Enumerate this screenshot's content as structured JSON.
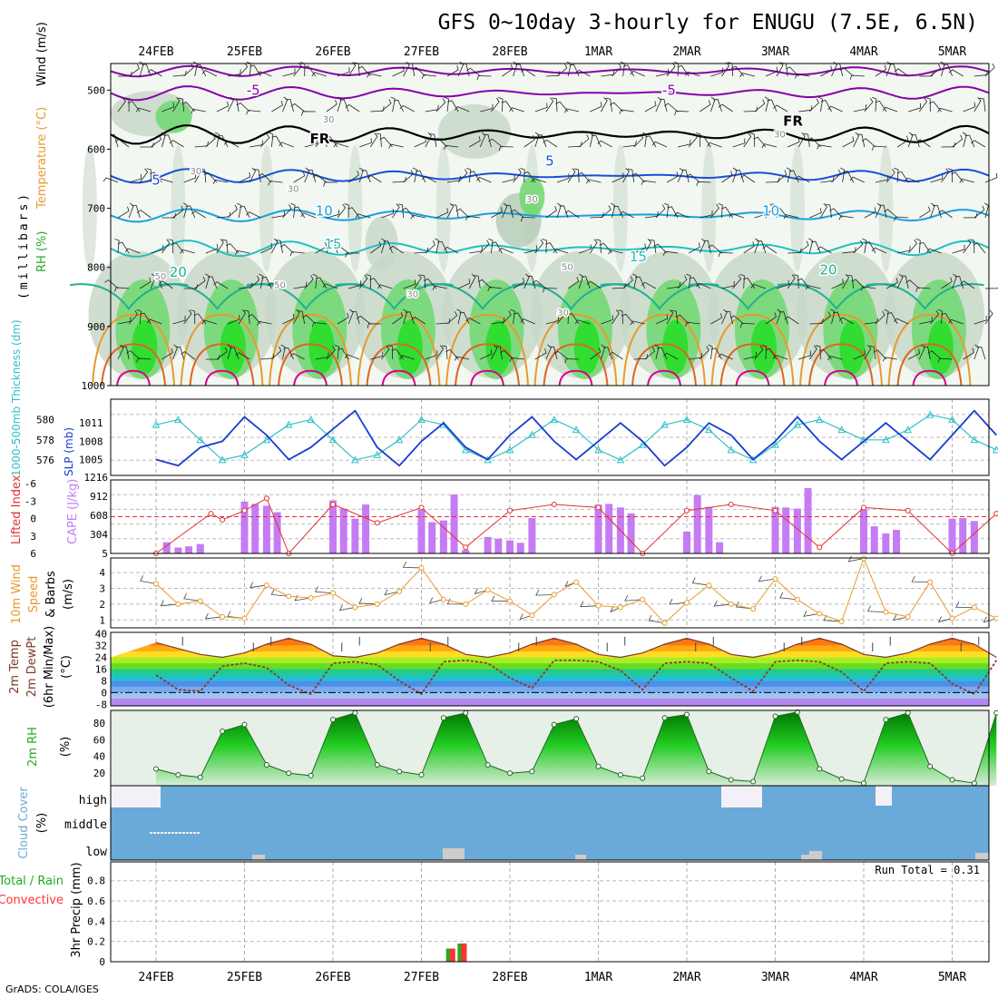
{
  "title": "GFS 0~10day 3-hourly for ENUGU (7.5E, 6.5N)",
  "footer": "GrADS: COLA/IGES",
  "dates": [
    "24FEB",
    "25FEB",
    "26FEB",
    "27FEB",
    "28FEB",
    "1MAR",
    "2MAR",
    "3MAR",
    "4MAR",
    "5MAR"
  ],
  "colors": {
    "accent_purple": "#8800aa",
    "freezing": "#000000",
    "temp_blue": "#1a4fd6",
    "slp": "#1a3cd0",
    "thickness": "#30c0c8",
    "cape_bar": "#c57bf4",
    "lifted_index": "#e03030",
    "wind_speed": "#e89a2c",
    "rh_green": "#22aa22",
    "cloud": "#6aaad8",
    "rain": "#ff3333",
    "total": "#22aa22"
  },
  "panels": {
    "upper_air": {
      "ylabels": [
        "RH (%)",
        "Temperature (°C)",
        "Wind (m/s)"
      ],
      "axis_title": "(millibars)",
      "levels": [
        "500",
        "600",
        "700",
        "800",
        "900",
        "1000"
      ],
      "contour_labels": [
        {
          "text": "-5",
          "level": 508,
          "day": 1.1
        },
        {
          "text": "-5",
          "level": 508,
          "day": 5.8
        },
        {
          "text": "FR",
          "level": 590,
          "day": 1.85
        },
        {
          "text": "FR",
          "level": 560,
          "day": 7.2
        },
        {
          "text": "5",
          "level": 628,
          "day": 4.45
        },
        {
          "text": "5",
          "level": 660,
          "day": 0.0
        },
        {
          "text": "10",
          "level": 712,
          "day": 1.9
        },
        {
          "text": "10",
          "level": 712,
          "day": 6.95
        },
        {
          "text": "15",
          "level": 768,
          "day": 2.0
        },
        {
          "text": "15",
          "level": 790,
          "day": 5.45
        },
        {
          "text": "20",
          "level": 816,
          "day": 0.25
        },
        {
          "text": "20",
          "level": 812,
          "day": 7.6
        },
        {
          "text": "30",
          "level": 555,
          "day": 1.95
        },
        {
          "text": "30",
          "level": 642,
          "day": 0.45
        },
        {
          "text": "30",
          "level": 672,
          "day": 1.55
        },
        {
          "text": "30",
          "level": 690,
          "day": 4.25
        },
        {
          "text": "30",
          "level": 580,
          "day": 7.05
        },
        {
          "text": "30",
          "level": 850,
          "day": 2.9
        },
        {
          "text": "30",
          "level": 882,
          "day": 4.6
        },
        {
          "text": "50",
          "level": 835,
          "day": 1.4
        },
        {
          "text": "50",
          "level": 804,
          "day": 4.65
        },
        {
          "text": "50",
          "level": 820,
          "day": 0.05
        }
      ]
    },
    "slp_thickness": {
      "label_thickness": "1000-500mb Thickness (dm)",
      "label_slp": "SLP (mb)",
      "thickness_ticks": [
        "580",
        "578",
        "576"
      ],
      "slp_ticks": [
        "1011",
        "1008",
        "1005"
      ]
    },
    "cape_li": {
      "label_li": "Lifted Index",
      "label_cape": "CAPE (J/kg)",
      "li_ticks": [
        "-6",
        "-3",
        "0",
        "3",
        "6"
      ],
      "cape_ticks": [
        "1216",
        "912",
        "608",
        "304",
        "5"
      ]
    },
    "wind10m": {
      "label_1": "10m Wind",
      "label_2": "Speed",
      "label_3": "& Barbs",
      "label_4": "(m/s)",
      "ticks": [
        "4",
        "3",
        "2",
        "1"
      ]
    },
    "temp2m": {
      "label_1": "2m Temp",
      "label_2": "2m DewPt",
      "label_3": "(6hr Min/Max)",
      "label_4": "(°C)",
      "ticks": [
        "40",
        "32",
        "24",
        "16",
        "8",
        "0",
        "-8"
      ]
    },
    "rh2m": {
      "label": "2m RH",
      "unit": "(%)",
      "ticks": [
        "80",
        "60",
        "40",
        "20"
      ]
    },
    "cloud": {
      "label": "Cloud Cover",
      "unit": "(%)",
      "rows": [
        "high",
        "middle",
        "low"
      ]
    },
    "precip": {
      "label_total": "Total / Rain",
      "label_conv": "Convective",
      "label_y": "3hr Precip (mm)",
      "run_total": "Run Total = 0.31",
      "ticks": [
        "0.8",
        "0.6",
        "0.4",
        "0.2",
        "0"
      ]
    }
  },
  "chart_data": [
    {
      "type": "line",
      "title": "SLP (mb)",
      "x": [
        0,
        0.25,
        0.5,
        0.75,
        1,
        1.25,
        1.5,
        1.75,
        2,
        2.25,
        2.5,
        2.75,
        3,
        3.25,
        3.5,
        3.75,
        4,
        4.25,
        4.5,
        4.75,
        5,
        5.25,
        5.5,
        5.75,
        6,
        6.25,
        6.5,
        6.75,
        7,
        7.25,
        7.5,
        7.75,
        8,
        8.25,
        8.5,
        8.75,
        9,
        9.25,
        9.5
      ],
      "values": [
        1005,
        1004,
        1007,
        1008,
        1012,
        1009,
        1005,
        1007,
        1010,
        1013,
        1007,
        1004,
        1008,
        1011,
        1007,
        1005,
        1009,
        1012,
        1008,
        1005,
        1008,
        1011,
        1008,
        1004,
        1007,
        1011,
        1009,
        1005,
        1008,
        1012,
        1008,
        1005,
        1008,
        1011,
        1008,
        1005,
        1009,
        1013,
        1009
      ]
    },
    {
      "type": "line",
      "title": "1000-500mb Thickness (dm)",
      "x": [
        0,
        0.25,
        0.5,
        0.75,
        1,
        1.25,
        1.5,
        1.75,
        2,
        2.25,
        2.5,
        2.75,
        3,
        3.25,
        3.5,
        3.75,
        4,
        4.25,
        4.5,
        4.75,
        5,
        5.25,
        5.5,
        5.75,
        6,
        6.25,
        6.5,
        6.75,
        7,
        7.25,
        7.5,
        7.75,
        8,
        8.25,
        8.5,
        8.75,
        9,
        9.25,
        9.5
      ],
      "values": [
        579.5,
        580,
        578,
        576,
        576.5,
        578,
        579.5,
        580,
        578,
        576,
        576.5,
        578,
        580,
        579.5,
        577,
        576,
        577,
        578.5,
        580,
        579,
        577,
        576,
        577.5,
        579.5,
        580,
        579,
        577,
        576,
        577.5,
        579.5,
        580,
        579,
        578,
        578,
        579,
        580.5,
        580,
        578,
        577
      ]
    },
    {
      "type": "bar",
      "title": "CAPE (J/kg)",
      "x": [
        0,
        0.12,
        0.25,
        0.37,
        0.5,
        0.62,
        1,
        1.12,
        1.25,
        1.37,
        1.5,
        2,
        2.12,
        2.25,
        2.37,
        2.5,
        3,
        3.12,
        3.25,
        3.37,
        3.5,
        3.75,
        3.87,
        4,
        4.12,
        4.25,
        4.37,
        5,
        5.12,
        5.25,
        5.37,
        5.5,
        6,
        6.12,
        6.25,
        6.37,
        6.5,
        7,
        7.12,
        7.25,
        7.37,
        7.5,
        8,
        8.12,
        8.25,
        8.37,
        8.5,
        9,
        9.12,
        9.25
      ],
      "values": [
        5,
        190,
        100,
        120,
        160,
        5,
        880,
        840,
        810,
        700,
        5,
        900,
        760,
        590,
        830,
        5,
        740,
        530,
        560,
        1000,
        60,
        280,
        250,
        220,
        180,
        600,
        5,
        830,
        840,
        780,
        680,
        5,
        370,
        990,
        790,
        190,
        5,
        790,
        780,
        760,
        1110,
        5,
        750,
        460,
        340,
        400,
        5,
        590,
        600,
        550
      ]
    },
    {
      "type": "line",
      "title": "Lifted Index",
      "x": [
        0,
        0.62,
        0.75,
        1,
        1.25,
        1.5,
        2,
        2.5,
        3,
        3.5,
        4,
        4.5,
        5,
        5.5,
        6,
        6.5,
        7,
        7.5,
        8,
        8.5,
        9,
        9.5
      ],
      "values": [
        6,
        -0.5,
        0.5,
        -1,
        -3,
        6,
        -2,
        1,
        -1.5,
        5,
        -1,
        -2,
        -1.5,
        6,
        -1,
        -2,
        -1,
        5,
        -1.5,
        -1,
        6,
        -0.5
      ]
    },
    {
      "type": "line",
      "title": "10m Wind Speed (m/s)",
      "x": [
        0,
        0.25,
        0.5,
        0.75,
        1,
        1.25,
        1.5,
        1.75,
        2,
        2.25,
        2.5,
        2.75,
        3,
        3.25,
        3.5,
        3.75,
        4,
        4.25,
        4.5,
        4.75,
        5,
        5.25,
        5.5,
        5.75,
        6,
        6.25,
        6.5,
        6.75,
        7,
        7.25,
        7.5,
        7.75,
        8,
        8.25,
        8.5,
        8.75,
        9,
        9.25,
        9.5
      ],
      "values": [
        3.3,
        2,
        2.2,
        1.2,
        1.1,
        3.2,
        2.5,
        2.4,
        2.7,
        1.8,
        2,
        2.8,
        4.3,
        2.3,
        2,
        2.9,
        2.2,
        1.3,
        2.6,
        3.4,
        1.9,
        1.8,
        2.3,
        0.8,
        2.1,
        3.2,
        2,
        1.7,
        3.6,
        2.3,
        1.4,
        0.9,
        4.9,
        1.5,
        1.2,
        3.4,
        1.1,
        1.8,
        1.1
      ]
    },
    {
      "type": "area",
      "title": "2m Temp (°C)",
      "x": [
        0,
        0.25,
        0.5,
        0.75,
        1,
        1.25,
        1.5,
        1.75,
        2,
        2.25,
        2.5,
        2.75,
        3,
        3.25,
        3.5,
        3.75,
        4,
        4.25,
        4.5,
        4.75,
        5,
        5.25,
        5.5,
        5.75,
        6,
        6.25,
        6.5,
        6.75,
        7,
        7.25,
        7.5,
        7.75,
        8,
        8.25,
        8.5,
        8.75,
        9,
        9.25,
        9.5
      ],
      "values": [
        34,
        30,
        26,
        24,
        27,
        33,
        37,
        33,
        25,
        24,
        27,
        33,
        37,
        33,
        26,
        24,
        27,
        33,
        37,
        33,
        26,
        24,
        27,
        33,
        37,
        33,
        26,
        24,
        27,
        33,
        37,
        33,
        26,
        24,
        27,
        33,
        37,
        33,
        24
      ]
    },
    {
      "type": "line",
      "title": "2m DewPt (°C)",
      "x": [
        0,
        0.25,
        0.5,
        0.75,
        1,
        1.25,
        1.5,
        1.75,
        2,
        2.25,
        2.5,
        2.75,
        3,
        3.25,
        3.5,
        3.75,
        4,
        4.25,
        4.5,
        4.75,
        5,
        5.25,
        5.5,
        5.75,
        6,
        6.25,
        6.5,
        6.75,
        7,
        7.25,
        7.5,
        7.75,
        8,
        8.25,
        8.5,
        8.75,
        9,
        9.25,
        9.5
      ],
      "values": [
        12,
        2,
        1,
        18,
        20,
        17,
        5,
        -1,
        20,
        21,
        19,
        8,
        -1,
        21,
        22,
        20,
        10,
        3,
        22,
        22,
        21,
        15,
        2,
        20,
        21,
        20,
        10,
        1,
        21,
        22,
        21,
        14,
        1,
        20,
        21,
        20,
        6,
        -1,
        22
      ]
    },
    {
      "type": "area",
      "title": "2m RH (%)",
      "x": [
        0,
        0.25,
        0.5,
        0.75,
        1,
        1.25,
        1.5,
        1.75,
        2,
        2.25,
        2.5,
        2.75,
        3,
        3.25,
        3.5,
        3.75,
        4,
        4.25,
        4.5,
        4.75,
        5,
        5.25,
        5.5,
        5.75,
        6,
        6.25,
        6.5,
        6.75,
        7,
        7.25,
        7.5,
        7.75,
        8,
        8.25,
        8.5,
        8.75,
        9,
        9.25,
        9.5
      ],
      "values": [
        25,
        18,
        15,
        70,
        78,
        30,
        20,
        17,
        84,
        92,
        30,
        22,
        18,
        86,
        92,
        30,
        20,
        22,
        78,
        85,
        28,
        18,
        14,
        86,
        90,
        22,
        12,
        10,
        88,
        93,
        25,
        13,
        8,
        84,
        92,
        28,
        12,
        8,
        92
      ]
    },
    {
      "type": "bar",
      "title": "3hr Precip (mm)",
      "x": [
        3.33,
        3.46
      ],
      "values": [
        0.13,
        0.18
      ],
      "series": [
        {
          "name": "Total / Rain",
          "x": [
            3.33,
            3.46
          ],
          "values": [
            0.13,
            0.18
          ]
        },
        {
          "name": "Convective",
          "x": [
            3.33,
            3.46
          ],
          "values": [
            0.13,
            0.18
          ]
        }
      ],
      "annotation": "Run Total = 0.31"
    }
  ]
}
